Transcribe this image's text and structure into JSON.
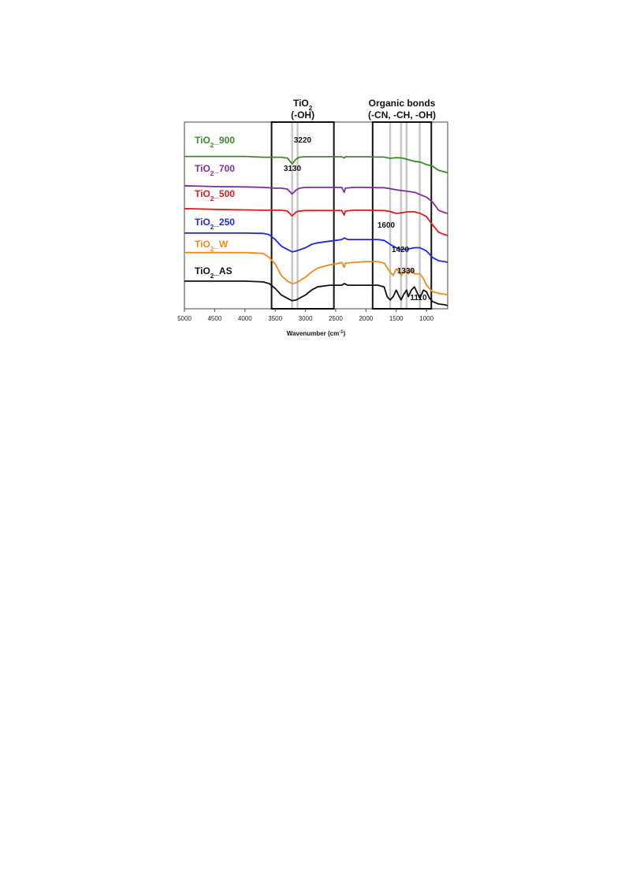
{
  "chart_data": {
    "type": "line",
    "xlabel": "Wavenumber (cm",
    "xlabel_sup": "-1",
    "xlabel_close": ")",
    "xlim": [
      5000,
      650
    ],
    "x_ticks": [
      5000,
      4500,
      4000,
      3500,
      3000,
      2500,
      2000,
      1500,
      1000
    ],
    "grid": false,
    "regions": [
      {
        "title_main": "TiO",
        "title_sub": "2",
        "title_line2": "(-OH)",
        "x_range": [
          3560,
          2530
        ]
      },
      {
        "title_main": "Organic bonds",
        "title_line2": "(-CN, -CH, -OH)",
        "x_range": [
          1890,
          920
        ]
      }
    ],
    "reference_lines": [
      3220,
      3130,
      1600,
      1420,
      1330,
      1110
    ],
    "peak_labels": [
      {
        "text": "3220",
        "x": 3220
      },
      {
        "text": "3130",
        "x": 3130
      },
      {
        "text": "1600",
        "x": 1600
      },
      {
        "text": "1420",
        "x": 1420
      },
      {
        "text": "1330",
        "x": 1330
      },
      {
        "text": "1110",
        "x": 1110
      }
    ],
    "series": [
      {
        "name_main": "TiO",
        "name_sub": "2",
        "name_suffix": "_900",
        "color": "#3a8a2a",
        "points": [
          [
            5000,
            0.92
          ],
          [
            4500,
            0.92
          ],
          [
            4000,
            0.92
          ],
          [
            3700,
            0.915
          ],
          [
            3500,
            0.915
          ],
          [
            3400,
            0.915
          ],
          [
            3300,
            0.91
          ],
          [
            3220,
            0.875
          ],
          [
            3150,
            0.905
          ],
          [
            3100,
            0.915
          ],
          [
            3000,
            0.918
          ],
          [
            2800,
            0.918
          ],
          [
            2600,
            0.918
          ],
          [
            2400,
            0.918
          ],
          [
            2360,
            0.91
          ],
          [
            2340,
            0.918
          ],
          [
            2200,
            0.918
          ],
          [
            2000,
            0.918
          ],
          [
            1800,
            0.916
          ],
          [
            1700,
            0.916
          ],
          [
            1600,
            0.908
          ],
          [
            1500,
            0.912
          ],
          [
            1400,
            0.91
          ],
          [
            1300,
            0.9
          ],
          [
            1200,
            0.89
          ],
          [
            1100,
            0.885
          ],
          [
            1000,
            0.87
          ],
          [
            900,
            0.86
          ],
          [
            800,
            0.835
          ],
          [
            700,
            0.825
          ],
          [
            650,
            0.82
          ]
        ]
      },
      {
        "name_main": "TiO",
        "name_sub": "2",
        "name_suffix": "_700",
        "color": "#7b2e9a",
        "points": [
          [
            5000,
            0.74
          ],
          [
            4500,
            0.735
          ],
          [
            4000,
            0.733
          ],
          [
            3700,
            0.73
          ],
          [
            3500,
            0.725
          ],
          [
            3400,
            0.725
          ],
          [
            3300,
            0.72
          ],
          [
            3220,
            0.69
          ],
          [
            3150,
            0.715
          ],
          [
            3100,
            0.725
          ],
          [
            3000,
            0.73
          ],
          [
            2800,
            0.73
          ],
          [
            2500,
            0.73
          ],
          [
            2400,
            0.73
          ],
          [
            2360,
            0.7
          ],
          [
            2340,
            0.725
          ],
          [
            2200,
            0.73
          ],
          [
            2000,
            0.73
          ],
          [
            1800,
            0.728
          ],
          [
            1700,
            0.728
          ],
          [
            1600,
            0.722
          ],
          [
            1500,
            0.715
          ],
          [
            1400,
            0.71
          ],
          [
            1300,
            0.705
          ],
          [
            1200,
            0.7
          ],
          [
            1100,
            0.685
          ],
          [
            1000,
            0.67
          ],
          [
            900,
            0.64
          ],
          [
            800,
            0.59
          ],
          [
            700,
            0.575
          ],
          [
            650,
            0.57
          ]
        ]
      },
      {
        "name_main": "TiO",
        "name_sub": "2",
        "name_suffix": "_500",
        "color": "#e01a1a",
        "points": [
          [
            5000,
            0.6
          ],
          [
            4500,
            0.595
          ],
          [
            4000,
            0.592
          ],
          [
            3700,
            0.59
          ],
          [
            3500,
            0.59
          ],
          [
            3400,
            0.59
          ],
          [
            3300,
            0.585
          ],
          [
            3220,
            0.555
          ],
          [
            3150,
            0.58
          ],
          [
            3100,
            0.585
          ],
          [
            3000,
            0.588
          ],
          [
            2800,
            0.588
          ],
          [
            2500,
            0.588
          ],
          [
            2400,
            0.588
          ],
          [
            2360,
            0.56
          ],
          [
            2340,
            0.585
          ],
          [
            2200,
            0.59
          ],
          [
            2000,
            0.59
          ],
          [
            1800,
            0.588
          ],
          [
            1700,
            0.588
          ],
          [
            1600,
            0.582
          ],
          [
            1500,
            0.57
          ],
          [
            1400,
            0.575
          ],
          [
            1300,
            0.58
          ],
          [
            1200,
            0.58
          ],
          [
            1100,
            0.57
          ],
          [
            1000,
            0.55
          ],
          [
            900,
            0.5
          ],
          [
            800,
            0.455
          ],
          [
            700,
            0.44
          ],
          [
            650,
            0.435
          ]
        ]
      },
      {
        "name_main": "TiO",
        "name_sub": "2",
        "name_suffix": "_250",
        "color": "#1a2ae0",
        "points": [
          [
            5000,
            0.45
          ],
          [
            4500,
            0.45
          ],
          [
            4000,
            0.45
          ],
          [
            3700,
            0.448
          ],
          [
            3600,
            0.44
          ],
          [
            3500,
            0.41
          ],
          [
            3400,
            0.37
          ],
          [
            3300,
            0.35
          ],
          [
            3220,
            0.335
          ],
          [
            3150,
            0.34
          ],
          [
            3000,
            0.36
          ],
          [
            2900,
            0.38
          ],
          [
            2800,
            0.39
          ],
          [
            2600,
            0.4
          ],
          [
            2500,
            0.405
          ],
          [
            2400,
            0.41
          ],
          [
            2360,
            0.42
          ],
          [
            2300,
            0.41
          ],
          [
            2200,
            0.41
          ],
          [
            2000,
            0.41
          ],
          [
            1800,
            0.41
          ],
          [
            1700,
            0.405
          ],
          [
            1600,
            0.38
          ],
          [
            1500,
            0.36
          ],
          [
            1420,
            0.35
          ],
          [
            1330,
            0.35
          ],
          [
            1200,
            0.36
          ],
          [
            1110,
            0.36
          ],
          [
            1000,
            0.34
          ],
          [
            900,
            0.3
          ],
          [
            800,
            0.28
          ],
          [
            700,
            0.275
          ],
          [
            650,
            0.27
          ]
        ]
      },
      {
        "name_main": "TiO",
        "name_sub": "2",
        "name_suffix": "_W",
        "color": "#f08a1e",
        "points": [
          [
            5000,
            0.33
          ],
          [
            4500,
            0.33
          ],
          [
            4000,
            0.33
          ],
          [
            3700,
            0.325
          ],
          [
            3600,
            0.3
          ],
          [
            3500,
            0.26
          ],
          [
            3400,
            0.19
          ],
          [
            3300,
            0.155
          ],
          [
            3220,
            0.14
          ],
          [
            3150,
            0.145
          ],
          [
            3000,
            0.18
          ],
          [
            2900,
            0.21
          ],
          [
            2800,
            0.235
          ],
          [
            2600,
            0.255
          ],
          [
            2500,
            0.26
          ],
          [
            2400,
            0.27
          ],
          [
            2360,
            0.24
          ],
          [
            2340,
            0.265
          ],
          [
            2200,
            0.27
          ],
          [
            2000,
            0.275
          ],
          [
            1800,
            0.275
          ],
          [
            1700,
            0.265
          ],
          [
            1600,
            0.21
          ],
          [
            1550,
            0.19
          ],
          [
            1500,
            0.23
          ],
          [
            1450,
            0.21
          ],
          [
            1420,
            0.19
          ],
          [
            1380,
            0.21
          ],
          [
            1330,
            0.22
          ],
          [
            1300,
            0.2
          ],
          [
            1250,
            0.23
          ],
          [
            1200,
            0.2
          ],
          [
            1110,
            0.2
          ],
          [
            1050,
            0.17
          ],
          [
            1000,
            0.13
          ],
          [
            900,
            0.09
          ],
          [
            800,
            0.08
          ],
          [
            700,
            0.075
          ],
          [
            650,
            0.07
          ]
        ]
      },
      {
        "name_main": "TiO",
        "name_sub": "2",
        "name_suffix": "_AS",
        "color": "#111111",
        "points": [
          [
            5000,
            0.155
          ],
          [
            4500,
            0.155
          ],
          [
            4000,
            0.155
          ],
          [
            3700,
            0.15
          ],
          [
            3600,
            0.14
          ],
          [
            3500,
            0.11
          ],
          [
            3400,
            0.07
          ],
          [
            3300,
            0.05
          ],
          [
            3220,
            0.035
          ],
          [
            3150,
            0.04
          ],
          [
            3000,
            0.07
          ],
          [
            2900,
            0.1
          ],
          [
            2800,
            0.12
          ],
          [
            2600,
            0.13
          ],
          [
            2500,
            0.13
          ],
          [
            2400,
            0.13
          ],
          [
            2360,
            0.14
          ],
          [
            2300,
            0.13
          ],
          [
            2200,
            0.13
          ],
          [
            2000,
            0.13
          ],
          [
            1800,
            0.13
          ],
          [
            1700,
            0.12
          ],
          [
            1650,
            0.06
          ],
          [
            1600,
            0.04
          ],
          [
            1550,
            0.06
          ],
          [
            1500,
            0.1
          ],
          [
            1450,
            0.06
          ],
          [
            1420,
            0.04
          ],
          [
            1380,
            0.07
          ],
          [
            1330,
            0.1
          ],
          [
            1300,
            0.06
          ],
          [
            1250,
            0.1
          ],
          [
            1200,
            0.12
          ],
          [
            1150,
            0.08
          ],
          [
            1110,
            0.05
          ],
          [
            1050,
            0.1
          ],
          [
            1000,
            0.09
          ],
          [
            950,
            0.05
          ],
          [
            900,
            0.03
          ],
          [
            800,
            0.015
          ],
          [
            700,
            0.01
          ],
          [
            650,
            0.005
          ]
        ]
      }
    ]
  }
}
